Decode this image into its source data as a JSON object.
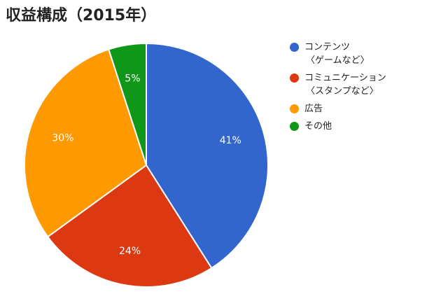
{
  "chart_data": {
    "type": "pie",
    "title": "収益構成（2015年）",
    "legend_position": "right",
    "slices": [
      {
        "name": "コンテンツ",
        "name_sub": "〈ゲームなど〉",
        "value": 41,
        "label": "41%",
        "color": "#3366cc"
      },
      {
        "name": "コミュニケーション",
        "name_sub": "〈スタンプなど〉",
        "value": 24,
        "label": "24%",
        "color": "#dc3912"
      },
      {
        "name": "広告",
        "name_sub": "",
        "value": 30,
        "label": "30%",
        "color": "#ff9900"
      },
      {
        "name": "その他",
        "name_sub": "",
        "value": 5,
        "label": "5%",
        "color": "#109618"
      }
    ]
  }
}
